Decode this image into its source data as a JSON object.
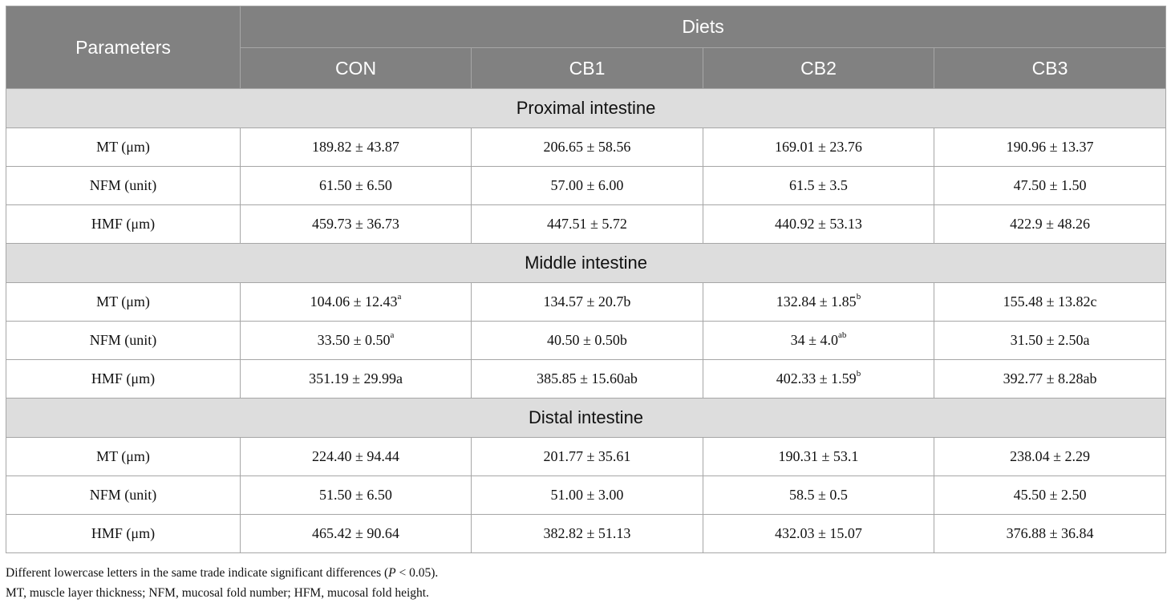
{
  "table": {
    "header": {
      "parameters": "Parameters",
      "diets": "Diets",
      "columns": [
        "CON",
        "CB1",
        "CB2",
        "CB3"
      ]
    },
    "sections": [
      {
        "title": "Proximal intestine",
        "rows": [
          {
            "label": "MT (μm)",
            "cells": [
              {
                "v": "189.82 ± 43.87",
                "s": ""
              },
              {
                "v": "206.65 ± 58.56",
                "s": ""
              },
              {
                "v": "169.01 ± 23.76",
                "s": ""
              },
              {
                "v": "190.96 ± 13.37",
                "s": ""
              }
            ]
          },
          {
            "label": "NFM (unit)",
            "cells": [
              {
                "v": "61.50 ± 6.50",
                "s": ""
              },
              {
                "v": "57.00 ± 6.00",
                "s": ""
              },
              {
                "v": "61.5 ± 3.5",
                "s": ""
              },
              {
                "v": "47.50 ± 1.50",
                "s": ""
              }
            ]
          },
          {
            "label": "HMF (μm)",
            "cells": [
              {
                "v": "459.73 ± 36.73",
                "s": ""
              },
              {
                "v": "447.51 ± 5.72",
                "s": ""
              },
              {
                "v": "440.92 ± 53.13",
                "s": ""
              },
              {
                "v": "422.9 ± 48.26",
                "s": ""
              }
            ]
          }
        ]
      },
      {
        "title": "Middle intestine",
        "rows": [
          {
            "label": "MT (μm)",
            "cells": [
              {
                "v": "104.06 ± 12.43",
                "s": "a"
              },
              {
                "v": "134.57 ± 20.7b",
                "s": ""
              },
              {
                "v": "132.84 ± 1.85",
                "s": "b"
              },
              {
                "v": "155.48 ± 13.82c",
                "s": ""
              }
            ]
          },
          {
            "label": "NFM (unit)",
            "cells": [
              {
                "v": "33.50 ± 0.50",
                "s": "a"
              },
              {
                "v": "40.50 ± 0.50b",
                "s": ""
              },
              {
                "v": "34 ± 4.0",
                "s": "ab"
              },
              {
                "v": "31.50 ± 2.50a",
                "s": ""
              }
            ]
          },
          {
            "label": "HMF (μm)",
            "cells": [
              {
                "v": "351.19 ± 29.99a",
                "s": ""
              },
              {
                "v": "385.85 ± 15.60ab",
                "s": ""
              },
              {
                "v": "402.33 ± 1.59",
                "s": "b"
              },
              {
                "v": "392.77 ± 8.28ab",
                "s": ""
              }
            ]
          }
        ]
      },
      {
        "title": "Distal intestine",
        "rows": [
          {
            "label": "MT (μm)",
            "cells": [
              {
                "v": "224.40 ± 94.44",
                "s": ""
              },
              {
                "v": "201.77 ± 35.61",
                "s": ""
              },
              {
                "v": "190.31 ± 53.1",
                "s": ""
              },
              {
                "v": "238.04 ± 2.29",
                "s": ""
              }
            ]
          },
          {
            "label": "NFM (unit)",
            "cells": [
              {
                "v": "51.50 ± 6.50",
                "s": ""
              },
              {
                "v": "51.00 ± 3.00",
                "s": ""
              },
              {
                "v": "58.5 ± 0.5",
                "s": ""
              },
              {
                "v": "45.50 ± 2.50",
                "s": ""
              }
            ]
          },
          {
            "label": "HMF (μm)",
            "cells": [
              {
                "v": "465.42 ± 90.64",
                "s": ""
              },
              {
                "v": "382.82 ± 51.13",
                "s": ""
              },
              {
                "v": "432.03 ± 15.07",
                "s": ""
              },
              {
                "v": "376.88 ± 36.84",
                "s": ""
              }
            ]
          }
        ]
      }
    ]
  },
  "footnotes": {
    "line1_before": "Different lowercase letters in the same trade indicate significant differences (",
    "line1_p": "P",
    "line1_after": " < 0.05).",
    "line2": "MT, muscle layer thickness; NFM, mucosal fold number; HFM, mucosal fold height."
  },
  "colors": {
    "header_bg": "#818181",
    "section_bg": "#dddddd",
    "border": "#a6a6a6"
  }
}
